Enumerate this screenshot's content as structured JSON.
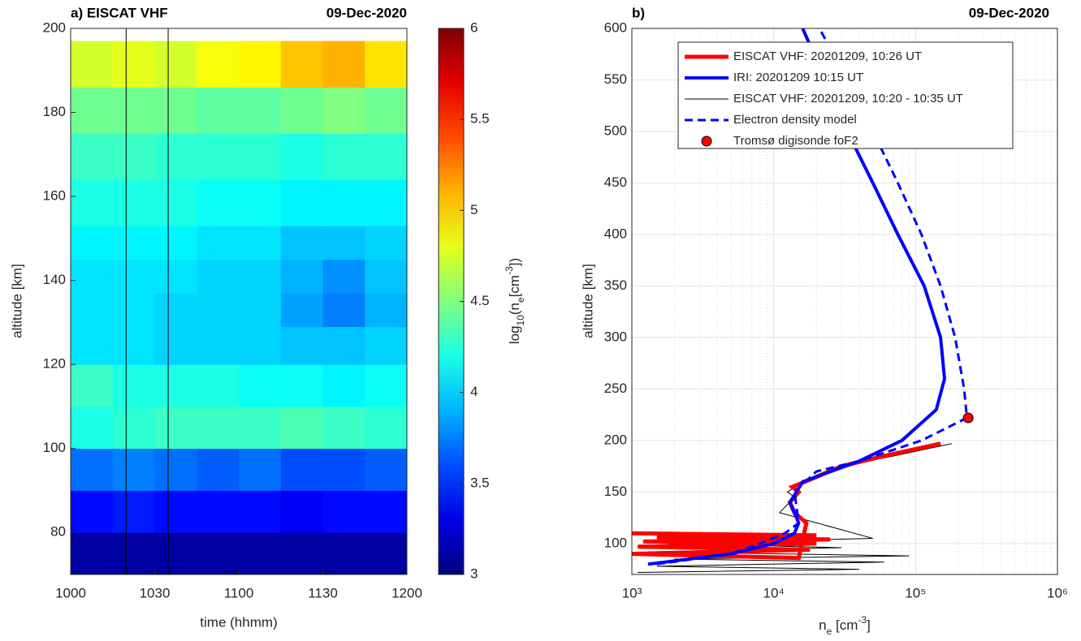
{
  "chart_data": [
    {
      "type": "heatmap",
      "title": "a) EISCAT VHF",
      "date": "09-Dec-2020",
      "xlabel": "time (hhmm)",
      "ylabel": "altitude [km]",
      "xlim": [
        10,
        12
      ],
      "xticks": [
        {
          "value": 10,
          "label": "1000"
        },
        {
          "value": 10.5,
          "label": "1030"
        },
        {
          "value": 11,
          "label": "1100"
        },
        {
          "value": 11.5,
          "label": "1130"
        },
        {
          "value": 12,
          "label": "1200"
        }
      ],
      "ylim": [
        70,
        200
      ],
      "yticks": [
        80,
        100,
        120,
        140,
        160,
        180,
        200
      ],
      "x_edges": [
        10,
        10.25,
        10.5,
        10.75,
        11,
        11.25,
        11.5,
        11.75,
        12
      ],
      "y_edges": [
        70,
        80,
        90,
        100,
        110,
        120,
        129,
        137,
        145,
        153,
        164,
        175,
        186,
        197
      ],
      "z": [
        [
          3.1,
          3.1,
          3.1,
          3.1,
          3.1,
          3.1,
          3.1,
          3.1
        ],
        [
          3.4,
          3.45,
          3.4,
          3.4,
          3.4,
          3.35,
          3.4,
          3.4
        ],
        [
          3.7,
          3.75,
          3.7,
          3.65,
          3.7,
          3.6,
          3.6,
          3.65
        ],
        [
          4.2,
          4.25,
          4.3,
          4.3,
          4.3,
          4.35,
          4.3,
          4.25
        ],
        [
          4.3,
          4.2,
          4.2,
          4.2,
          4.15,
          4.15,
          4.1,
          4.15
        ],
        [
          4.05,
          4.05,
          4.0,
          4.0,
          4.0,
          3.95,
          3.95,
          4.0
        ],
        [
          4.05,
          4.05,
          4.0,
          4.0,
          4.0,
          3.85,
          3.75,
          3.9
        ],
        [
          4.05,
          4.05,
          4.05,
          4.0,
          4.0,
          3.9,
          3.8,
          3.95
        ],
        [
          4.1,
          4.1,
          4.1,
          4.05,
          4.05,
          3.95,
          3.95,
          4.0
        ],
        [
          4.2,
          4.2,
          4.2,
          4.15,
          4.15,
          4.1,
          4.1,
          4.1
        ],
        [
          4.3,
          4.3,
          4.25,
          4.25,
          4.25,
          4.2,
          4.25,
          4.25
        ],
        [
          4.45,
          4.45,
          4.45,
          4.4,
          4.4,
          4.45,
          4.5,
          4.45
        ],
        [
          4.75,
          4.8,
          4.75,
          4.85,
          4.9,
          5.05,
          5.1,
          4.95
        ]
      ],
      "vlines": [
        10.33,
        10.58
      ],
      "colormap": "jet",
      "clim": [
        3,
        6
      ],
      "cticks": [
        3,
        3.5,
        4,
        4.5,
        5,
        5.5,
        6
      ],
      "colorbar_label": [
        {
          "text": "log"
        },
        {
          "text": "10",
          "shift": "sub"
        },
        {
          "text": "(n"
        },
        {
          "text": "e",
          "shift": "sub"
        },
        {
          "text": "[cm"
        },
        {
          "text": "-3",
          "shift": "super"
        },
        {
          "text": "])"
        }
      ]
    },
    {
      "type": "line",
      "title": "b)",
      "date": "09-Dec-2020",
      "xlabel": [
        {
          "text": "n"
        },
        {
          "text": "e",
          "shift": "sub"
        },
        {
          "text": " [cm"
        },
        {
          "text": "-3",
          "shift": "super"
        },
        {
          "text": "]"
        }
      ],
      "ylabel": "altitude [km]",
      "xscale": "log",
      "xlim": [
        1000,
        1000000
      ],
      "xticks": [
        {
          "value": 1000,
          "label": "10³"
        },
        {
          "value": 10000,
          "label": "10⁴"
        },
        {
          "value": 100000,
          "label": "10⁵"
        },
        {
          "value": 1000000,
          "label": "10⁶"
        }
      ],
      "ylim": [
        70,
        600
      ],
      "yticks": [
        100,
        150,
        200,
        250,
        300,
        350,
        400,
        450,
        500,
        550,
        600
      ],
      "grid": true,
      "minor_grid": true,
      "legend": "top",
      "series": [
        {
          "name": "EISCAT VHF: 20201209, 10:26 UT",
          "color": "#ff0000",
          "style": "solid",
          "width": 5,
          "x": [
            1000,
            20000,
            1500,
            25000,
            1200,
            20000,
            1100,
            18000,
            1000,
            15000,
            17000,
            14000,
            13000,
            15000,
            13500,
            18000,
            30000,
            60000,
            150000
          ],
          "y": [
            110,
            108,
            106,
            104,
            102,
            100,
            97,
            94,
            90,
            86,
            120,
            130,
            140,
            150,
            155,
            162,
            175,
            185,
            197
          ]
        },
        {
          "name": "IRI: 20201209 10:15 UT",
          "color": "#0000ff",
          "style": "solid",
          "width": 4,
          "x": [
            1300,
            5000,
            10000,
            14000,
            15000,
            13000,
            16000,
            40000,
            80000,
            140000,
            160000,
            150000,
            115000,
            75000,
            50000,
            33000,
            23000,
            16000
          ],
          "y": [
            80,
            90,
            100,
            110,
            120,
            140,
            160,
            180,
            200,
            230,
            260,
            300,
            350,
            400,
            450,
            500,
            550,
            600
          ]
        },
        {
          "name": "EISCAT VHF: 20201209, 10:20 - 10:35 UT",
          "color": "#000000",
          "style": "solid",
          "width": 1,
          "x": [
            1100,
            40000,
            1500,
            60000,
            2000,
            90000,
            1300,
            30000,
            1800,
            50000,
            11000,
            14000,
            12500,
            16000,
            30000,
            70000,
            180000
          ],
          "y": [
            72,
            75,
            78,
            82,
            85,
            88,
            92,
            96,
            100,
            105,
            130,
            145,
            150,
            160,
            175,
            185,
            197
          ]
        },
        {
          "name": "Electron density model",
          "color": "#0000ff",
          "style": "dashed",
          "width": 3,
          "x": [
            1500,
            5000,
            8000,
            12000,
            15000,
            14000,
            20000,
            40000,
            110000,
            230000,
            220000,
            190000,
            150000,
            110000,
            75000,
            50000,
            33000,
            21000
          ],
          "y": [
            80,
            90,
            100,
            110,
            120,
            150,
            170,
            180,
            200,
            222,
            250,
            300,
            350,
            400,
            450,
            500,
            550,
            600
          ]
        },
        {
          "name": "Tromsø digisonde foF2",
          "color": "#ff0000",
          "style": "marker",
          "x": [
            235000
          ],
          "y": [
            222
          ]
        }
      ]
    }
  ]
}
